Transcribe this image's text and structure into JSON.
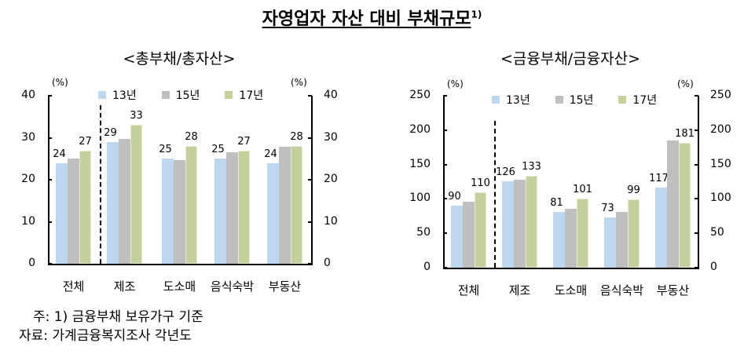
{
  "title": "자영업자 자산 대비 부채규모",
  "title_sup": "1)",
  "notes": {
    "note1": "주: 1) 금융부채 보유가구 기준",
    "source": "자료: 가계금융복지조사 각년도"
  },
  "colors": {
    "y13": "#bdd7ee",
    "y15": "#bfbfbf",
    "y17": "#c3d09b"
  },
  "chart_data": [
    {
      "type": "bar",
      "title": "<총부채/총자산>",
      "ylabel": "(%)",
      "ylabel_right": "(%)",
      "ylim": [
        0,
        40
      ],
      "yticks": [
        0,
        10,
        20,
        30,
        40
      ],
      "categories": [
        "전체",
        "제조",
        "도소매",
        "음식숙박",
        "부동산"
      ],
      "series": [
        {
          "name": "13년",
          "values": [
            24,
            29,
            25,
            25,
            24
          ]
        },
        {
          "name": "15년",
          "values": [
            25,
            29.7,
            24.7,
            26.6,
            27.8
          ]
        },
        {
          "name": "17년",
          "values": [
            27,
            33,
            28,
            27,
            28
          ]
        }
      ],
      "data_labels": {
        "13년": [
          24,
          29,
          25,
          25,
          24
        ],
        "17년": [
          27,
          33,
          28,
          27,
          28
        ]
      },
      "legend": [
        "13년",
        "15년",
        "17년"
      ],
      "legend_position": "top",
      "grid": false,
      "annotation": "dashed separator between 전체 and 제조"
    },
    {
      "type": "bar",
      "title": "<금융부채/금융자산>",
      "ylabel": "(%)",
      "ylabel_right": "(%)",
      "ylim": [
        0,
        250
      ],
      "yticks": [
        0,
        50,
        100,
        150,
        200,
        250
      ],
      "categories": [
        "전체",
        "제조",
        "도소매",
        "음식숙박",
        "부동산"
      ],
      "series": [
        {
          "name": "13년",
          "values": [
            90,
            126,
            81,
            73,
            117
          ]
        },
        {
          "name": "15년",
          "values": [
            96,
            128,
            86,
            81,
            185
          ]
        },
        {
          "name": "17년",
          "values": [
            110,
            133,
            101,
            99,
            181
          ]
        }
      ],
      "data_labels": {
        "13년": [
          90,
          126,
          81,
          73,
          117
        ],
        "17년": [
          110,
          133,
          101,
          99,
          181
        ]
      },
      "legend": [
        "13년",
        "15년",
        "17년"
      ],
      "legend_position": "top",
      "grid": false,
      "annotation": "dashed separator between 전체 and 제조"
    }
  ]
}
